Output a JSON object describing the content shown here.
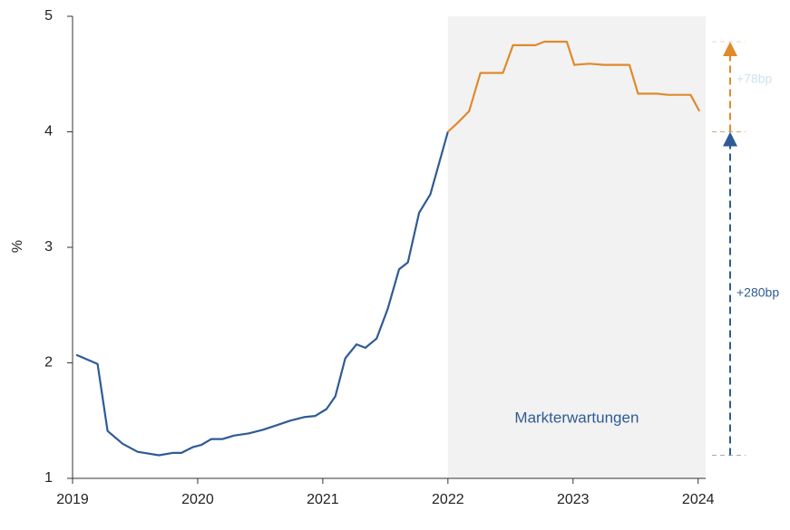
{
  "chart_data": {
    "type": "line",
    "ylabel": "%",
    "xlim": [
      2019,
      2024.06
    ],
    "xticks": [
      2019,
      2020,
      2021,
      2022,
      2023,
      2024
    ],
    "ylim": [
      1,
      5
    ],
    "yticks": [
      1,
      2,
      3,
      4,
      5
    ],
    "shaded_region": {
      "x": [
        2022,
        2024.06
      ],
      "label": "Markterwartungen",
      "color": "#f2f2f2"
    },
    "series": [
      {
        "color": "#2f5b94",
        "x": [
          2019.03,
          2019.2,
          2019.28,
          2019.4,
          2019.52,
          2019.69,
          2019.8,
          2019.87,
          2019.96,
          2020.03,
          2020.11,
          2020.2,
          2020.29,
          2020.41,
          2020.52,
          2020.63,
          2020.74,
          2020.85,
          2020.94,
          2021.03,
          2021.1,
          2021.18,
          2021.27,
          2021.34,
          2021.43,
          2021.52,
          2021.61,
          2021.68,
          2021.77,
          2021.86,
          2022.0
        ],
        "values": [
          2.07,
          1.99,
          1.41,
          1.3,
          1.23,
          1.2,
          1.22,
          1.22,
          1.27,
          1.29,
          1.34,
          1.34,
          1.37,
          1.39,
          1.42,
          1.46,
          1.5,
          1.53,
          1.54,
          1.6,
          1.71,
          2.04,
          2.16,
          2.13,
          2.21,
          2.47,
          2.81,
          2.87,
          3.3,
          3.46,
          4.0
        ]
      },
      {
        "color": "#e08a2c",
        "x": [
          2022.0,
          2022.08,
          2022.17,
          2022.26,
          2022.44,
          2022.52,
          2022.7,
          2022.77,
          2022.95,
          2023.01,
          2023.13,
          2023.25,
          2023.45,
          2023.52,
          2023.67,
          2023.76,
          2023.94,
          2024.01
        ],
        "values": [
          4.0,
          4.08,
          4.18,
          4.51,
          4.51,
          4.75,
          4.75,
          4.78,
          4.78,
          4.58,
          4.59,
          4.58,
          4.58,
          4.33,
          4.33,
          4.32,
          4.32,
          4.18
        ]
      }
    ],
    "arrows": [
      {
        "label": "+280bp",
        "from": 1.2,
        "to": 4.0,
        "color": "#2f5b94",
        "label_color": "#2f5b94"
      },
      {
        "label": "+78bp",
        "from": 4.0,
        "to": 4.78,
        "color": "#e08a2c",
        "label_color": "#cde3ec"
      }
    ]
  }
}
